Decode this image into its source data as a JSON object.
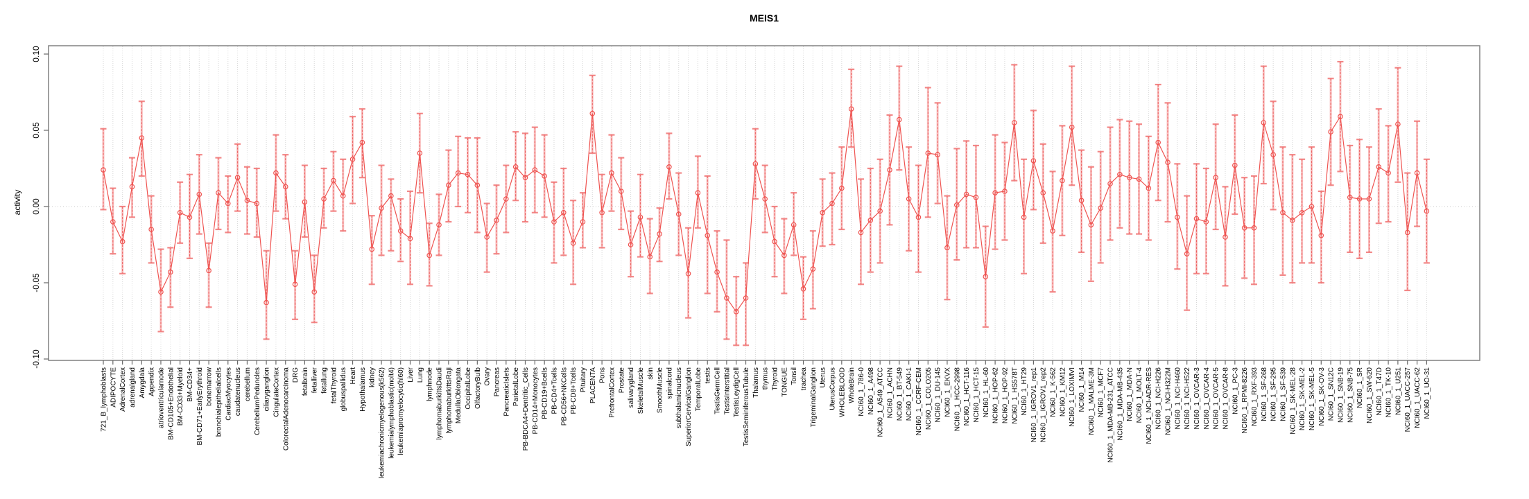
{
  "figure": {
    "title": "MEIS1",
    "ylabel": "activity"
  },
  "axis": {
    "ytick_values": [
      -0.1,
      -0.05,
      0.0,
      0.05,
      0.1
    ],
    "ytick_labels": [
      "-0.10",
      "-0.05",
      "0.00",
      "0.05",
      "0.10"
    ]
  },
  "colors": {
    "series": "#ef5350",
    "error_bar_fill": "rgba(244,130,130,0.5)",
    "error_bar_dash": "#ee5f5f",
    "error_bar_cap": "rgba(240,115,115,0.85)",
    "grid": "#d8d8d8",
    "zero_line": "#c9c9c9",
    "box": "#808080",
    "tick": "#666666",
    "text": "#000000"
  },
  "chart_data": {
    "type": "line",
    "title": "MEIS1",
    "xlabel": "",
    "ylabel": "activity",
    "ylim": [
      -0.105,
      0.105
    ],
    "grid": "vertical dotted gridline per category, dotted zero line",
    "legend": "none",
    "point_marker": "open-circle",
    "error_bars": true,
    "categories": [
      "721_B_lymphoblasts",
      "ADIPOCYTE",
      "AdrenalCortex",
      "adrenalgland",
      "Amygdala",
      "Appendix",
      "atrioventricularnode",
      "BM-CD105+Endothelial",
      "BM-CD33+Myeloid",
      "BM-CD34+",
      "BM-CD71+EarlyErythroid",
      "bonemarrow",
      "bronchialepithelialcells",
      "CardiacMyocytes",
      "caudatenucleus",
      "cerebellum",
      "CerebellumPeduncles",
      "ciliaryganglion",
      "CingulateCortex",
      "ColorectalAdenocarcinoma",
      "DRG",
      "fetalbrain",
      "fetalliver",
      "fetallung",
      "fetalThyroid",
      "globuspallidus",
      "Heart",
      "Hypothalamus",
      "kidney",
      "leukemiachronicmyelogenous(k562)",
      "leukemialymphoblastic(molt4)",
      "leukemiapromyelocytic(hl60)",
      "Liver",
      "Lung",
      "lymphnode",
      "lymphomaburkittsDaudi",
      "lymphomaburkittsRaji",
      "MedullaOblongata",
      "OccipitalLobe",
      "OlfactoryBulb",
      "Ovary",
      "Pancreas",
      "PancreaticIslets",
      "ParietalLobe",
      "PB-BDCA4+Dentritic_Cells",
      "PB-CD14+Monocytes",
      "PB-CD19+Bcells",
      "PB-CD4+Tcells",
      "PB-CD56+NKCells",
      "PB-CD8+Tcells",
      "Pituitary",
      "PLACENTA",
      "Pons",
      "PrefrontalCortex",
      "Prostate",
      "salivarygland",
      "SkeletalMuscle",
      "skin",
      "SmoothMuscle",
      "spinalcord",
      "subthalamicnucleus",
      "SuperiorCervicalGanglion",
      "TemporalLobe",
      "testis",
      "TestisGermCell",
      "TestisInterstitial",
      "TestisLeydigCell",
      "TestisSeminiferousTubule",
      "Thalamus",
      "thymus",
      "Thyroid",
      "TONGUE",
      "Tonsil",
      "trachea",
      "TrigeminalGanglion",
      "Uterus",
      "UterusCorpus",
      "WHOLEBLOOD",
      "WholeBrain",
      "NCI60_1_786-0",
      "NCI60_1_A498",
      "NCI60_1_A549_ATCC",
      "NCI60_1_ACHN",
      "NCI60_1_BT-549",
      "NCI60_1_CAKI-1",
      "NCI60_1_CCRF-CEM",
      "NCI60_1_COLO205",
      "NCI60_1_DU-145",
      "NCI60_1_EKVX",
      "NCI60_1_HCC-2998",
      "NCI60_1_HCT-116",
      "NCI60_1_HCT-15",
      "NCI60_1_HL-60",
      "NCI60_1_HOP-62",
      "NCI60_1_HOP-92",
      "NCI60_1_HS578T",
      "NCI60_1_HT29",
      "NCI60_1_IGROV1_rep1",
      "NCI60_1_IGROV1_rep2",
      "NCI60_1_K-562",
      "NCI60_1_KM12",
      "NCI60_1_LOXIMVI",
      "NCI60_1_M14",
      "NCI60_1_MALME-3M",
      "NCI60_1_MCF7",
      "NCI60_1_MDA-MB-231_ATCC",
      "NCI60_1_MDA-MB-435",
      "NCI60_1_MDA-N",
      "NCI60_1_MOLT-4",
      "NCI60_1_NCI-ADR-RES",
      "NCI60_1_NCI-H226",
      "NCI60_1_NCI-H322M",
      "NCI60_1_NCI-H460",
      "NCI60_1_NCI-H522",
      "NCI60_1_OVCAR-3",
      "NCI60_1_OVCAR-4",
      "NCI60_1_OVCAR-5",
      "NCI60_1_OVCAR-8",
      "NCI60_1_PC-3",
      "NCI60_1_RPMI-8226",
      "NCI60_1_RXF-393",
      "NCI60_1_SF-268",
      "NCI60_1_SF-295",
      "NCI60_1_SF-539",
      "NCI60_1_SK-MEL-28",
      "NCI60_1_SK-MEL-2",
      "NCI60_1_SK-MEL-5",
      "NCI60_1_SK-OV-3",
      "NCI60_1_SN12C",
      "NCI60_1_SNB-19",
      "NCI60_1_SNB-75",
      "NCI60_1_SR",
      "NCI60_1_SW-620",
      "NCI60_1_T47D",
      "NCI60_1_TK-10",
      "NCI60_1_U251",
      "NCI60_1_UACC-257",
      "NCI60_1_UACC-62",
      "NCI60_1_UO-31"
    ],
    "values": [
      0.024,
      -0.01,
      -0.023,
      0.013,
      0.045,
      -0.015,
      -0.056,
      -0.043,
      -0.004,
      -0.007,
      0.008,
      -0.042,
      0.009,
      0.002,
      0.019,
      0.004,
      0.002,
      -0.063,
      0.022,
      0.013,
      -0.051,
      0.003,
      -0.056,
      0.005,
      0.017,
      0.007,
      0.031,
      0.042,
      -0.028,
      -0.001,
      0.007,
      -0.016,
      -0.021,
      0.035,
      -0.032,
      -0.012,
      0.014,
      0.022,
      0.021,
      0.014,
      -0.02,
      -0.009,
      0.005,
      0.026,
      0.019,
      0.024,
      0.02,
      -0.01,
      -0.004,
      -0.024,
      -0.01,
      0.061,
      -0.004,
      0.022,
      0.01,
      -0.025,
      -0.007,
      -0.033,
      -0.018,
      0.026,
      -0.005,
      -0.044,
      0.009,
      -0.019,
      -0.043,
      -0.06,
      -0.069,
      -0.06,
      0.028,
      0.005,
      -0.023,
      -0.032,
      -0.012,
      -0.054,
      -0.041,
      -0.004,
      0.002,
      0.012,
      0.064,
      -0.017,
      -0.009,
      -0.003,
      0.024,
      0.057,
      0.005,
      -0.007,
      0.035,
      0.034,
      -0.027,
      0.001,
      0.008,
      0.006,
      -0.046,
      0.009,
      0.01,
      0.055,
      -0.007,
      0.03,
      0.009,
      -0.016,
      0.017,
      0.052,
      0.004,
      -0.012,
      -0.001,
      0.015,
      0.021,
      0.019,
      0.018,
      0.012,
      0.042,
      0.029,
      -0.007,
      -0.031,
      -0.008,
      -0.01,
      0.019,
      -0.02,
      0.027,
      -0.014,
      -0.014,
      0.055,
      0.034,
      -0.004,
      -0.009,
      -0.004,
      0.0,
      -0.019,
      0.049,
      0.059,
      0.006,
      0.005,
      0.005,
      0.026,
      0.022,
      0.054,
      -0.017,
      0.022,
      -0.003
    ],
    "err_lo": [
      -0.002,
      -0.031,
      -0.044,
      -0.007,
      0.02,
      -0.037,
      -0.082,
      -0.066,
      -0.024,
      -0.034,
      -0.018,
      -0.066,
      -0.015,
      -0.017,
      -0.003,
      -0.018,
      -0.02,
      -0.087,
      -0.003,
      -0.008,
      -0.074,
      -0.02,
      -0.076,
      -0.014,
      -0.003,
      -0.016,
      0.002,
      0.019,
      -0.051,
      -0.032,
      -0.029,
      -0.036,
      -0.051,
      0.009,
      -0.052,
      -0.032,
      -0.01,
      0.0,
      -0.004,
      -0.017,
      -0.043,
      -0.031,
      -0.017,
      0.004,
      -0.01,
      -0.004,
      -0.007,
      -0.037,
      -0.032,
      -0.051,
      -0.027,
      0.035,
      -0.027,
      -0.003,
      -0.015,
      -0.046,
      -0.033,
      -0.057,
      -0.036,
      0.005,
      -0.032,
      -0.073,
      -0.014,
      -0.057,
      -0.069,
      -0.087,
      -0.091,
      -0.091,
      0.005,
      -0.017,
      -0.046,
      -0.057,
      -0.032,
      -0.074,
      -0.067,
      -0.026,
      -0.025,
      -0.015,
      0.039,
      -0.051,
      -0.043,
      -0.037,
      -0.012,
      0.024,
      -0.029,
      -0.043,
      -0.007,
      0.002,
      -0.061,
      -0.035,
      -0.027,
      -0.027,
      -0.079,
      -0.028,
      -0.022,
      0.017,
      -0.044,
      -0.002,
      -0.024,
      -0.056,
      -0.019,
      0.014,
      -0.03,
      -0.049,
      -0.037,
      -0.022,
      -0.014,
      -0.018,
      -0.018,
      -0.022,
      0.004,
      -0.01,
      -0.041,
      -0.068,
      -0.044,
      -0.044,
      -0.015,
      -0.052,
      -0.005,
      -0.047,
      -0.051,
      0.015,
      -0.002,
      -0.045,
      -0.05,
      -0.037,
      -0.037,
      -0.05,
      0.014,
      0.023,
      -0.03,
      -0.034,
      -0.03,
      -0.011,
      -0.01,
      0.016,
      -0.055,
      -0.013,
      -0.037
    ],
    "err_hi": [
      0.051,
      0.012,
      0.0,
      0.032,
      0.069,
      0.007,
      -0.028,
      -0.027,
      0.016,
      0.021,
      0.034,
      -0.024,
      0.032,
      0.02,
      0.041,
      0.026,
      0.025,
      -0.029,
      0.047,
      0.034,
      -0.029,
      0.027,
      -0.032,
      0.025,
      0.036,
      0.031,
      0.059,
      0.064,
      -0.006,
      0.027,
      0.018,
      0.005,
      0.01,
      0.061,
      -0.011,
      0.008,
      0.037,
      0.046,
      0.045,
      0.045,
      0.002,
      0.014,
      0.027,
      0.049,
      0.048,
      0.052,
      0.047,
      0.016,
      0.025,
      0.004,
      0.009,
      0.086,
      0.021,
      0.047,
      0.032,
      -0.003,
      0.021,
      -0.008,
      -0.001,
      0.048,
      0.022,
      -0.014,
      0.033,
      0.02,
      -0.016,
      -0.022,
      -0.046,
      -0.037,
      0.051,
      0.027,
      0.0,
      -0.008,
      0.009,
      -0.033,
      -0.016,
      0.018,
      0.022,
      0.039,
      0.09,
      0.018,
      0.025,
      0.031,
      0.06,
      0.092,
      0.039,
      0.027,
      0.078,
      0.068,
      0.007,
      0.038,
      0.043,
      0.04,
      -0.013,
      0.047,
      0.042,
      0.093,
      0.031,
      0.063,
      0.041,
      0.023,
      0.053,
      0.092,
      0.037,
      0.026,
      0.036,
      0.052,
      0.057,
      0.056,
      0.054,
      0.046,
      0.08,
      0.068,
      0.028,
      0.007,
      0.028,
      0.025,
      0.054,
      0.013,
      0.06,
      0.019,
      0.02,
      0.092,
      0.069,
      0.039,
      0.034,
      0.031,
      0.039,
      0.01,
      0.084,
      0.095,
      0.04,
      0.044,
      0.039,
      0.064,
      0.053,
      0.091,
      0.022,
      0.056,
      0.031
    ]
  }
}
